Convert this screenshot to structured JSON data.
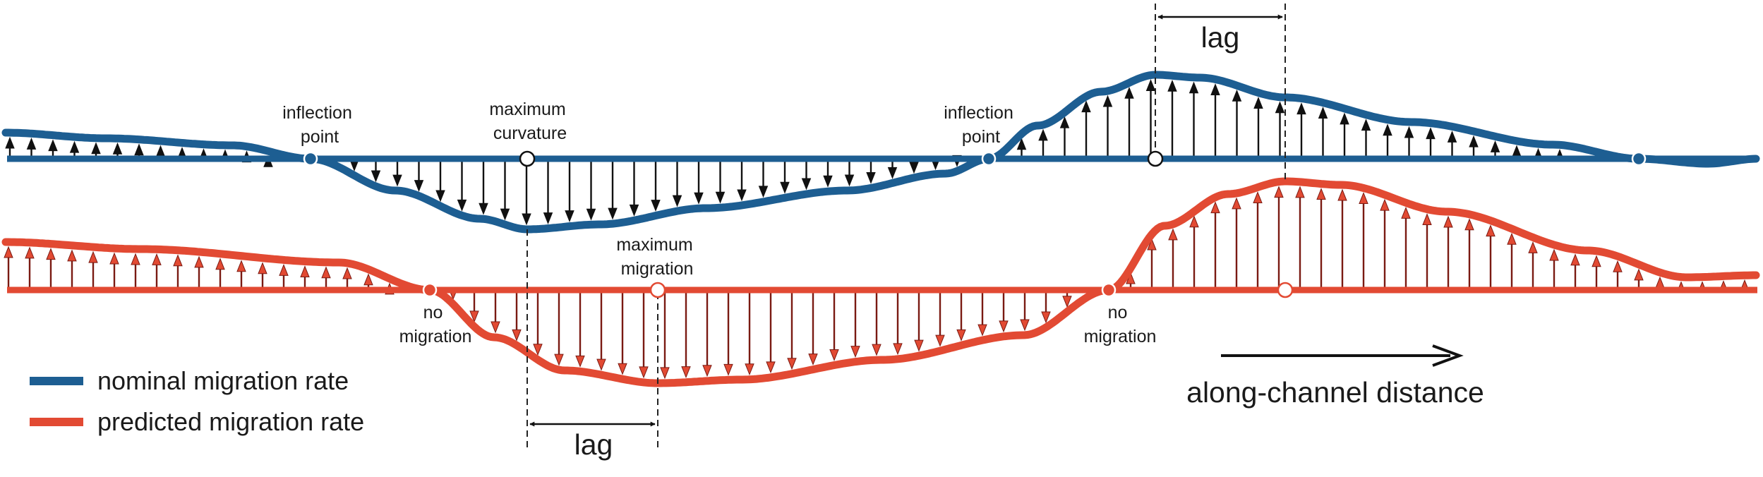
{
  "colors": {
    "nominal": "#1d5e92",
    "predicted": "#e24a33",
    "arrow_nominal": "#111111",
    "arrow_predicted": "#c92a2a",
    "text": "#1a1a1a"
  },
  "labels": {
    "inflection_point_1": [
      "inflection",
      "point"
    ],
    "maximum_curvature": [
      "maximum",
      "curvature"
    ],
    "inflection_point_2": [
      "inflection",
      "point"
    ],
    "lag_top": "lag",
    "maximum_migration": [
      "maximum",
      "migration"
    ],
    "no_migration_1": [
      "no",
      "migration"
    ],
    "no_migration_2": [
      "no",
      "migration"
    ],
    "lag_bottom": "lag",
    "along_channel": "along-channel distance"
  },
  "legend": {
    "nominal": "nominal migration rate",
    "predicted": "predicted migration rate"
  },
  "icons": {
    "arrow": "arrow-up-down-icon",
    "along_channel_arrow": "arrow-right-icon"
  }
}
